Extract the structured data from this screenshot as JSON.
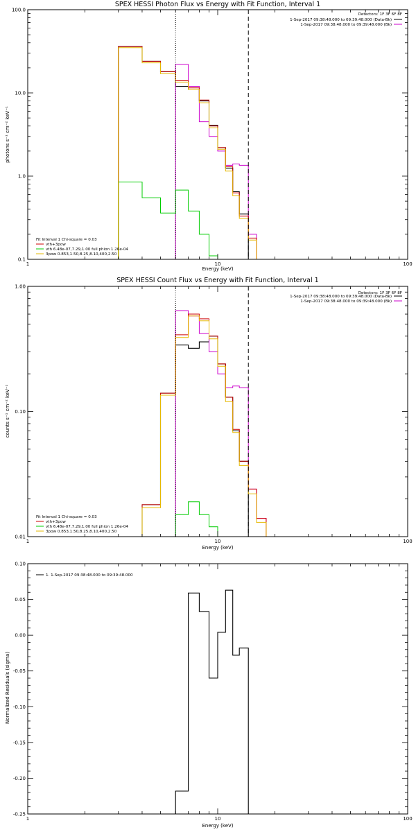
{
  "chart_data": [
    {
      "type": "line",
      "title": "SPEX HESSI Photon Flux vs Energy with Fit Function, Interval 1",
      "xlabel": "Energy (keV)",
      "ylabel": "photons s⁻¹ cm⁻² keV⁻¹",
      "xlog": true,
      "ylog": true,
      "xlim": [
        1,
        100
      ],
      "ylim": [
        0.1,
        100
      ],
      "xticks": [
        {
          "v": 1,
          "label": "1"
        },
        {
          "v": 10,
          "label": "10"
        },
        {
          "v": 100,
          "label": "100"
        }
      ],
      "yticks": [
        {
          "v": 0.1,
          "label": "0.1"
        },
        {
          "v": 1,
          "label": "1.0"
        },
        {
          "v": 10,
          "label": "10.0"
        },
        {
          "v": 100,
          "label": "100.0"
        }
      ],
      "ref_lines": [
        {
          "x": 6,
          "style": "dotted"
        },
        {
          "x": 14.5,
          "style": "dashed"
        }
      ],
      "detectors": "Detectors: 1F 3F 6F 8F",
      "top_legend": [
        {
          "label": "1-Sep-2017 09:38:48.000 to 09:39:48.000 (Data-Bk)",
          "color": "#000000"
        },
        {
          "label": "1-Sep-2017 09:38:48.000 to 09:39:48.000 (Bk)",
          "color": "#cc00cc"
        }
      ],
      "fit_header": "Fit Interval 1   Chi-square = 0.03",
      "fit_legend": [
        {
          "label": "vth+3pow",
          "color": "#cc0000"
        },
        {
          "label": "vth 6.48e-07,7.29,1.00  full phion 1.26e-04",
          "color": "#00cc00"
        },
        {
          "label": "3pow 0.853,1.50,8.25,8.10,400,2.50",
          "color": "#e6b800"
        }
      ],
      "edges": [
        3,
        4,
        5,
        6,
        7,
        8,
        9,
        10,
        11,
        12,
        13,
        14.5,
        16,
        18
      ],
      "series": [
        {
          "name": "Data-Bk",
          "color": "#000000",
          "width": 1.1,
          "start": 3,
          "values": [
            36,
            24,
            18,
            12,
            11,
            8,
            4.1,
            2.2,
            1.25,
            0.65,
            0.35,
            null,
            null
          ]
        },
        {
          "name": "Bk",
          "color": "#cc00cc",
          "width": 1,
          "start": 6,
          "values": [
            22,
            12,
            4.5,
            3.0,
            2.0,
            1.35,
            1.4,
            1.35,
            0.2,
            null
          ]
        },
        {
          "name": "vth+3pow",
          "color": "#cc0000",
          "width": 1,
          "start": 3,
          "values": [
            36,
            24,
            18,
            14,
            11.5,
            8.2,
            4.0,
            2.2,
            1.3,
            0.63,
            0.33,
            0.18,
            null
          ]
        },
        {
          "name": "vth 6.48e-07,7.29,1.00  full phion 1.26e-04",
          "color": "#00cc00",
          "width": 1,
          "start": 3,
          "values": [
            0.85,
            0.55,
            0.36,
            0.68,
            0.38,
            0.2,
            0.11,
            null,
            null,
            null,
            null,
            null,
            null
          ]
        },
        {
          "name": "3pow 0.853,1.50,8.25,8.10,400,2.50",
          "color": "#e6b800",
          "width": 1,
          "start": 3,
          "values": [
            35,
            23,
            17,
            13.5,
            11,
            7.6,
            3.8,
            2.1,
            1.15,
            0.58,
            0.31,
            0.17,
            null
          ]
        }
      ]
    },
    {
      "type": "line",
      "title": "SPEX HESSI Count Flux vs Energy with Fit Function, Interval 1",
      "xlabel": "Energy (keV)",
      "ylabel": "counts s⁻¹ cm⁻² keV⁻¹",
      "xlog": true,
      "ylog": true,
      "xlim": [
        1,
        100
      ],
      "ylim": [
        0.01,
        1
      ],
      "xticks": [
        {
          "v": 1,
          "label": "1"
        },
        {
          "v": 10,
          "label": "10"
        },
        {
          "v": 100,
          "label": "100"
        }
      ],
      "yticks": [
        {
          "v": 0.01,
          "label": "0.01"
        },
        {
          "v": 0.1,
          "label": "0.10"
        },
        {
          "v": 1,
          "label": "1.00"
        }
      ],
      "ref_lines": [
        {
          "x": 6,
          "style": "dotted"
        },
        {
          "x": 14.5,
          "style": "dashed"
        }
      ],
      "detectors": "Detectors: 1F 3F 6F 8F",
      "top_legend": [
        {
          "label": "1-Sep-2017 09:38:48.000 to 09:39:48.000 (Data-Bk)",
          "color": "#000000"
        },
        {
          "label": "1-Sep-2017 09:38:48.000 to 09:39:48.000 (Bk)",
          "color": "#cc00cc"
        }
      ],
      "fit_header": "Fit Interval 1   Chi-square = 0.03",
      "fit_legend": [
        {
          "label": "vth+3pow",
          "color": "#cc0000"
        },
        {
          "label": "vth 6.48e-07,7.29,1.00  full phion 1.26e-04",
          "color": "#00cc00"
        },
        {
          "label": "3pow 0.853,1.50,8.25,8.10,400,2.50",
          "color": "#e6b800"
        }
      ],
      "edges": [
        3,
        4,
        5,
        6,
        7,
        8,
        9,
        10,
        11,
        12,
        13,
        14.5,
        16,
        18
      ],
      "series": [
        {
          "name": "Data-Bk",
          "color": "#000000",
          "width": 1.1,
          "start": 4,
          "values": [
            0.018,
            0.14,
            0.34,
            0.32,
            0.36,
            0.4,
            0.24,
            0.13,
            0.07,
            0.04,
            null,
            null
          ]
        },
        {
          "name": "Bk",
          "color": "#cc00cc",
          "width": 1,
          "start": 6,
          "values": [
            0.64,
            0.58,
            0.42,
            0.3,
            0.2,
            0.155,
            0.16,
            0.155,
            0.024,
            0.014
          ]
        },
        {
          "name": "vth+3pow",
          "color": "#cc0000",
          "width": 1,
          "start": 4,
          "values": [
            0.018,
            0.14,
            0.41,
            0.6,
            0.55,
            0.4,
            0.24,
            0.13,
            0.072,
            0.04,
            0.024,
            0.014
          ]
        },
        {
          "name": "vth 6.48e-07,7.29,1.00  full phion 1.26e-04",
          "color": "#00cc00",
          "width": 1,
          "start": 6,
          "values": [
            0.015,
            0.019,
            0.015,
            0.012,
            null,
            null,
            null,
            null
          ]
        },
        {
          "name": "3pow 0.853,1.50,8.25,8.10,400,2.50",
          "color": "#e6b800",
          "width": 1,
          "start": 4,
          "values": [
            0.017,
            0.135,
            0.39,
            0.58,
            0.53,
            0.38,
            0.23,
            0.12,
            0.068,
            0.037,
            0.022,
            0.013
          ]
        }
      ]
    },
    {
      "type": "line",
      "title": "",
      "xlabel": "Energy (keV)",
      "ylabel": "Normalized Residuals (sigma)",
      "xlog": true,
      "ylog": false,
      "xlim": [
        1,
        100
      ],
      "ylim": [
        -0.25,
        0.1
      ],
      "xticks": [
        {
          "v": 1,
          "label": "1"
        },
        {
          "v": 10,
          "label": "10"
        },
        {
          "v": 100,
          "label": "100"
        }
      ],
      "yticks": [
        {
          "v": 0.1,
          "label": "0.10"
        },
        {
          "v": 0.05,
          "label": "0.05"
        },
        {
          "v": 0.0,
          "label": "0.00"
        },
        {
          "v": -0.05,
          "label": "-0.05"
        },
        {
          "v": -0.1,
          "label": "-0.10"
        },
        {
          "v": -0.15,
          "label": "-0.15"
        },
        {
          "v": -0.2,
          "label": "-0.20"
        },
        {
          "v": -0.25,
          "label": "-0.25"
        }
      ],
      "ref_lines": [],
      "legend": [
        {
          "label": "1.  1-Sep-2017 09:38:48.000 to 09:39:48.000",
          "color": "#000000"
        }
      ],
      "edges": [
        6,
        7,
        8,
        9,
        10,
        11,
        12,
        13,
        14.5
      ],
      "series": [
        {
          "name": "1.  1-Sep-2017 09:38:48.000 to 09:39:48.000",
          "color": "#000000",
          "width": 1.1,
          "start": 6,
          "values": [
            -0.218,
            0.059,
            0.033,
            -0.06,
            0.004,
            0.063,
            -0.028,
            -0.018
          ],
          "closed": true
        }
      ]
    }
  ]
}
